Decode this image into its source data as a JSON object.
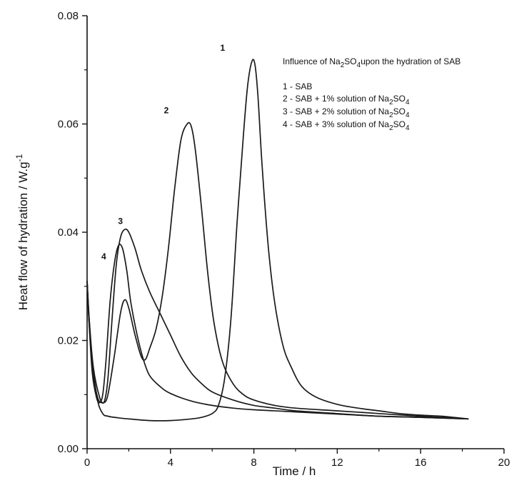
{
  "chart_data": {
    "type": "line",
    "title": "",
    "xlabel": "Time / h",
    "ylabel": "Heat flow of hydration / W.g-1",
    "xlim": [
      0,
      20
    ],
    "ylim": [
      0,
      0.08
    ],
    "x_ticks": [
      0,
      4,
      8,
      12,
      16,
      20
    ],
    "y_ticks": [
      0.0,
      0.02,
      0.04,
      0.06,
      0.08
    ],
    "x_tick_labels": [
      "0",
      "4",
      "8",
      "12",
      "16",
      "20"
    ],
    "y_tick_labels": [
      "0.00",
      "0.02",
      "0.04",
      "0.06",
      "0.08"
    ],
    "grid": false,
    "annotation": {
      "title": "Influence of Na2SO4upon the hydration of SAB",
      "items": [
        "1 - SAB",
        "2 - SAB + 1% solution of  Na2SO4",
        "3 - SAB + 2% solution of  Na2SO4",
        "4 - SAB + 3% solution of  Na2SO4"
      ],
      "placement": "top-right"
    },
    "series": [
      {
        "name": "1",
        "label_at": [
          6.5,
          0.0735
        ],
        "x": [
          0,
          0.1,
          0.25,
          0.5,
          0.75,
          1,
          1.5,
          2,
          3,
          4,
          5,
          5.5,
          6,
          6.3,
          6.6,
          6.9,
          7.2,
          7.5,
          7.7,
          7.9,
          8.05,
          8.2,
          8.4,
          8.7,
          9,
          9.4,
          9.8,
          10.3,
          11,
          12,
          13,
          14,
          15,
          16,
          17,
          18.3
        ],
        "y": [
          0.031,
          0.024,
          0.016,
          0.009,
          0.0065,
          0.006,
          0.0057,
          0.0055,
          0.0052,
          0.0052,
          0.0055,
          0.0058,
          0.0065,
          0.008,
          0.013,
          0.024,
          0.042,
          0.058,
          0.067,
          0.0715,
          0.071,
          0.065,
          0.052,
          0.037,
          0.027,
          0.019,
          0.015,
          0.0115,
          0.0095,
          0.0082,
          0.0075,
          0.007,
          0.0065,
          0.0062,
          0.006,
          0.0055
        ]
      },
      {
        "name": "2",
        "label_at": [
          3.8,
          0.062
        ],
        "x": [
          0,
          0.1,
          0.3,
          0.6,
          0.8,
          1,
          1.3,
          1.6,
          1.8,
          2,
          2.3,
          2.6,
          2.8,
          3,
          3.3,
          3.6,
          3.9,
          4.2,
          4.5,
          4.8,
          5,
          5.2,
          5.5,
          5.8,
          6.1,
          6.5,
          7,
          7.5,
          8,
          9,
          10,
          12,
          14,
          16,
          18.3
        ],
        "y": [
          0.031,
          0.024,
          0.015,
          0.0095,
          0.0085,
          0.01,
          0.017,
          0.025,
          0.0275,
          0.026,
          0.021,
          0.017,
          0.0165,
          0.0185,
          0.022,
          0.028,
          0.037,
          0.048,
          0.057,
          0.06,
          0.0595,
          0.055,
          0.044,
          0.032,
          0.023,
          0.016,
          0.012,
          0.01,
          0.009,
          0.008,
          0.0075,
          0.007,
          0.0065,
          0.006,
          0.0055
        ]
      },
      {
        "name": "3",
        "label_at": [
          1.6,
          0.0415
        ],
        "x": [
          0,
          0.1,
          0.3,
          0.5,
          0.7,
          0.85,
          1,
          1.2,
          1.4,
          1.6,
          1.8,
          2,
          2.3,
          2.6,
          3,
          3.5,
          4,
          4.5,
          5,
          5.5,
          6,
          7,
          8,
          9,
          10,
          12,
          14,
          16,
          18.3
        ],
        "y": [
          0.031,
          0.023,
          0.014,
          0.0095,
          0.0085,
          0.009,
          0.013,
          0.024,
          0.034,
          0.039,
          0.0405,
          0.04,
          0.037,
          0.033,
          0.029,
          0.025,
          0.021,
          0.017,
          0.014,
          0.012,
          0.0105,
          0.009,
          0.008,
          0.0075,
          0.007,
          0.0065,
          0.006,
          0.0058,
          0.0055
        ]
      },
      {
        "name": "4",
        "label_at": [
          0.8,
          0.035
        ],
        "x": [
          0,
          0.1,
          0.25,
          0.45,
          0.6,
          0.75,
          0.9,
          1.1,
          1.3,
          1.5,
          1.7,
          1.9,
          2.1,
          2.4,
          2.7,
          3,
          3.5,
          4,
          5,
          6,
          7,
          8,
          10,
          12,
          14,
          16,
          18.3
        ],
        "y": [
          0.031,
          0.023,
          0.014,
          0.0095,
          0.0085,
          0.01,
          0.016,
          0.027,
          0.034,
          0.0375,
          0.037,
          0.033,
          0.027,
          0.021,
          0.0165,
          0.0135,
          0.0115,
          0.0102,
          0.0088,
          0.008,
          0.0075,
          0.0072,
          0.0068,
          0.0064,
          0.006,
          0.0058,
          0.0055
        ]
      }
    ],
    "colors": {
      "line": "#1a1a1a",
      "axis": "#111111",
      "background": "#ffffff"
    }
  }
}
